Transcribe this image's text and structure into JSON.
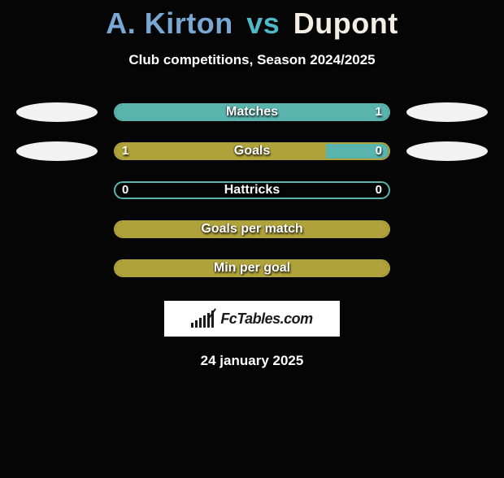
{
  "title": {
    "player1": "A. Kirton",
    "vs": "vs",
    "player2": "Dupont",
    "player1_color": "#7aa8d4",
    "vs_color": "#4fb8c9",
    "player2_color": "#f4ede3"
  },
  "subtitle": "Club competitions, Season 2024/2025",
  "colors": {
    "teal": "#5ab4ae",
    "olive": "#b0a23a",
    "white": "#f2f2f2",
    "background": "#050505"
  },
  "rows": [
    {
      "label": "Matches",
      "left_val": "",
      "right_val": "1",
      "border_color": "#5ab4ae",
      "left_fill_color": "#5ab4ae",
      "right_fill_color": "#5ab4ae",
      "left_fill_pct": 100,
      "right_fill_pct": 0,
      "left_ellipse_color": "#f2f2f2",
      "right_ellipse_color": "#f2f2f2",
      "show_ellipses": true
    },
    {
      "label": "Goals",
      "left_val": "1",
      "right_val": "0",
      "border_color": "#b0a23a",
      "left_fill_color": "#b0a23a",
      "right_fill_color": "#5ab4ae",
      "left_fill_pct": 77,
      "right_fill_pct": 23,
      "left_ellipse_color": "#f2f2f2",
      "right_ellipse_color": "#f2f2f2",
      "show_ellipses": true
    },
    {
      "label": "Hattricks",
      "left_val": "0",
      "right_val": "0",
      "border_color": "#5ab4ae",
      "left_fill_color": "#5ab4ae",
      "right_fill_color": "#5ab4ae",
      "left_fill_pct": 0,
      "right_fill_pct": 0,
      "show_ellipses": false
    },
    {
      "label": "Goals per match",
      "left_val": "",
      "right_val": "",
      "border_color": "#b0a23a",
      "left_fill_color": "#b0a23a",
      "right_fill_color": "#b0a23a",
      "left_fill_pct": 100,
      "right_fill_pct": 0,
      "show_ellipses": false
    },
    {
      "label": "Min per goal",
      "left_val": "",
      "right_val": "",
      "border_color": "#b0a23a",
      "left_fill_color": "#b0a23a",
      "right_fill_color": "#b0a23a",
      "left_fill_pct": 100,
      "right_fill_pct": 0,
      "show_ellipses": false
    }
  ],
  "logo_text": "FcTables.com",
  "logo_bar_heights": [
    6,
    9,
    12,
    15,
    18,
    21
  ],
  "date": "24 january 2025"
}
